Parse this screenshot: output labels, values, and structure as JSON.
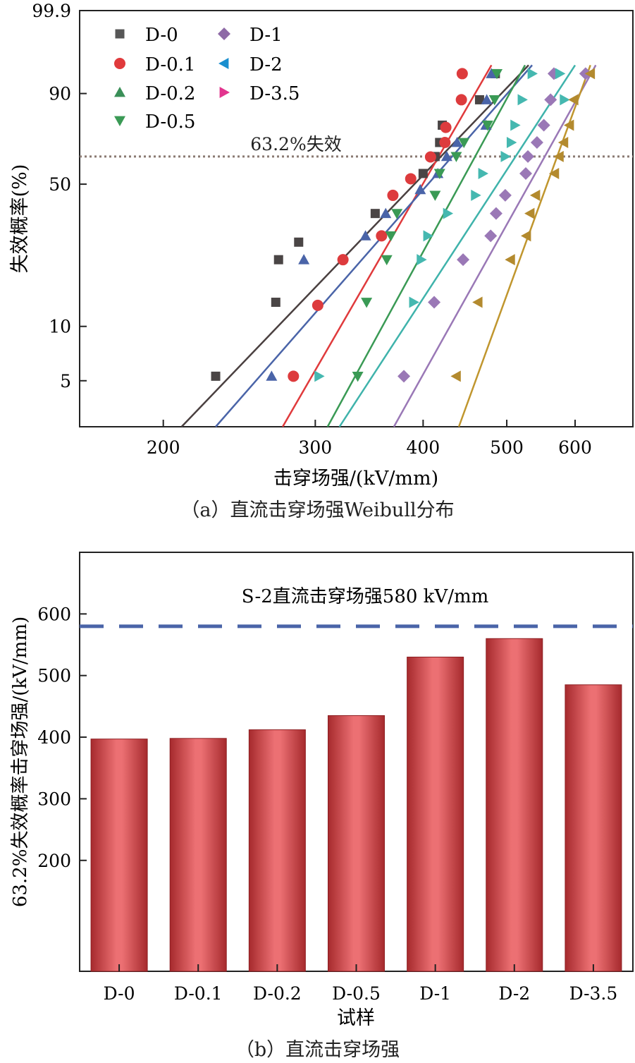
{
  "chart_data": [
    {
      "type": "scatter",
      "title": "",
      "caption": "（a）直流击穿场强Weibull分布",
      "xlabel": "击穿场强/(kV/mm)",
      "ylabel": "失效概率(%)",
      "x_scale": "log",
      "y_scale": "weibull",
      "xlim": [
        160,
        700
      ],
      "ylim": [
        2.75,
        99.9
      ],
      "x_ticks": [
        200,
        300,
        400,
        500,
        600
      ],
      "y_ticks": [
        5,
        10,
        50,
        90,
        99.9
      ],
      "legend_position": "top-left",
      "annotation": "63.2%失效",
      "reference_line_y": 63.2,
      "series": [
        {
          "name": "D-0",
          "marker": "square",
          "color": "#575757",
          "x": [
            230,
            270,
            272,
            287,
            352,
            400,
            413,
            418,
            421,
            465,
            485
          ],
          "y": [
            5.3,
            13.5,
            22.5,
            27.5,
            37.5,
            55,
            63.2,
            70,
            78,
            88,
            95
          ],
          "fit": [
            [
              210,
              2.75
            ],
            [
              530,
              96.5
            ]
          ]
        },
        {
          "name": "D-0.1",
          "marker": "circle",
          "color": "#e03a3c",
          "x": [
            283,
            302,
            323,
            358,
            369,
            387,
            408,
            424,
            425,
            443,
            444
          ],
          "y": [
            5.3,
            13,
            22.5,
            29.5,
            45,
            52.5,
            63,
            70,
            77,
            88,
            95
          ],
          "fit": [
            [
              275,
              2.75
            ],
            [
              480,
              96.5
            ]
          ]
        },
        {
          "name": "D-0.2",
          "marker": "triangle-up",
          "color": "#3a8f58",
          "x": [
            267,
            291,
            343,
            362,
            397,
            416,
            426,
            438,
            473,
            474,
            480
          ],
          "y": [
            5.3,
            22.5,
            29.5,
            37.5,
            47.5,
            55,
            63.2,
            70,
            78,
            88,
            95
          ],
          "fit": [
            [
              230,
              2.75
            ],
            [
              535,
              96.5
            ]
          ]
        },
        {
          "name": "D-0.5",
          "marker": "triangle-down",
          "color": "#3a9a55",
          "x": [
            336,
            344,
            363,
            367,
            373,
            413,
            418,
            437,
            446,
            475,
            484,
            487
          ],
          "y": [
            5.3,
            13.5,
            22.5,
            29.5,
            37.5,
            45,
            55,
            63.2,
            70,
            78,
            88,
            95
          ],
          "fit": [
            [
              310,
              2.75
            ],
            [
              525,
              96.5
            ]
          ]
        },
        {
          "name": "D-1",
          "marker": "diamond",
          "color": "#8e6aa6",
          "x": [
            380,
            412,
            445,
            479,
            486,
            498,
            526,
            529,
            542,
            552,
            562,
            567,
            617
          ],
          "y": [
            5.3,
            13.5,
            22.5,
            29.5,
            37.5,
            45,
            55,
            63.2,
            70,
            78,
            88,
            95,
            95
          ],
          "fit": [
            [
              370,
              2.75
            ],
            [
              634,
              96.5
            ]
          ]
        },
        {
          "name": "D-2",
          "marker": "triangle-left",
          "color": "#1a8fcf",
          "fit": [
            [
              320,
              2.75
            ],
            [
              600,
              96.5
            ]
          ]
        },
        {
          "name": "D-3.5",
          "marker": "triangle-right",
          "color": "#e2348e",
          "x": [
            303,
            390,
            398,
            405,
            427,
            460,
            469,
            498,
            506,
            511,
            521,
            535,
            576,
            583
          ],
          "y": [
            5.3,
            13.5,
            22.5,
            29.5,
            37.5,
            45,
            55,
            63.2,
            70,
            78,
            88,
            95,
            95,
            88
          ],
          "fit": [
            [
              440,
              2.75
            ],
            [
              625,
              96.5
            ]
          ]
        }
      ],
      "olive_points": {
        "color": "#b38a2e",
        "x": [
          437,
          463,
          505,
          527,
          532,
          540,
          568,
          575,
          582,
          591,
          598,
          625
        ],
        "y": [
          5.3,
          13.5,
          22.5,
          29.5,
          37.5,
          45,
          55,
          63.2,
          70,
          78,
          88,
          95
        ]
      },
      "teal_fit": {
        "color": "#3fb3ab",
        "from": [
          322,
          2.75
        ],
        "to": [
          597,
          96.5
        ]
      }
    },
    {
      "type": "bar",
      "title": "",
      "caption": "（b）直流击穿场强",
      "xlabel": "试样",
      "ylabel": "63.2%失效概率击穿场强/(kV/mm)",
      "categories": [
        "D-0",
        "D-0.1",
        "D-0.2",
        "D-0.5",
        "D-1",
        "D-2",
        "D-3.5"
      ],
      "values": [
        397,
        398,
        412,
        435,
        530,
        560,
        485
      ],
      "ylim": [
        20,
        700
      ],
      "y_ticks": [
        200,
        300,
        400,
        500,
        600
      ],
      "reference_line": {
        "value": 580,
        "label": "S-2直流击穿场强580 kV/mm",
        "color": "#4a64a8"
      },
      "bar_color": "#d9484c"
    }
  ]
}
